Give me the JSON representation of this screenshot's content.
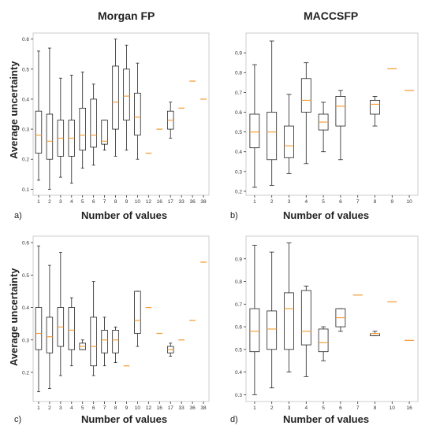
{
  "titles": {
    "morgan": "Morgan FP",
    "maccs": "MACCSFP"
  },
  "axis_labels": {
    "ylabel_a": "Average uncertainty",
    "ylabel_c": "Average uncertainty",
    "xlabel_a": "Number of values",
    "xlabel_b": "Number of values",
    "xlabel_c": "Number of values",
    "xlabel_d": "Number of values"
  },
  "panel_labels": {
    "a": "a)",
    "b": "b)",
    "c": "c)",
    "d": "d)"
  },
  "colors": {
    "box": "#222222",
    "median": "#f5a03c",
    "frame": "#cccccc",
    "tick": "#333333"
  },
  "chart_data": [
    {
      "id": "a",
      "type": "box",
      "ylim": [
        0.08,
        0.62
      ],
      "yticks": [
        0.1,
        0.2,
        0.3,
        0.4,
        0.5,
        0.6
      ],
      "categories": [
        "1",
        "2",
        "3",
        "4",
        "5",
        "6",
        "7",
        "8",
        "9",
        "10",
        "12",
        "16",
        "17",
        "33",
        "36",
        "38"
      ],
      "boxes": [
        [
          0.13,
          0.22,
          0.28,
          0.36,
          0.56
        ],
        [
          0.1,
          0.2,
          0.26,
          0.35,
          0.57
        ],
        [
          0.14,
          0.21,
          0.27,
          0.33,
          0.47
        ],
        [
          0.12,
          0.21,
          0.27,
          0.33,
          0.48
        ],
        [
          0.17,
          0.23,
          0.28,
          0.37,
          0.49
        ],
        [
          0.18,
          0.24,
          0.28,
          0.4,
          0.45
        ],
        [
          0.23,
          0.25,
          0.26,
          0.33,
          0.33
        ],
        [
          0.21,
          0.3,
          0.39,
          0.51,
          0.6
        ],
        [
          0.23,
          0.33,
          0.41,
          0.5,
          0.58
        ],
        [
          0.2,
          0.28,
          0.34,
          0.42,
          0.52
        ],
        [
          0.22,
          0.22,
          0.22,
          0.22,
          0.22
        ],
        [
          0.3,
          0.3,
          0.3,
          0.3,
          0.3
        ],
        [
          0.27,
          0.3,
          0.33,
          0.36,
          0.39
        ],
        [
          0.37,
          0.37,
          0.37,
          0.37,
          0.37
        ],
        [
          0.46,
          0.46,
          0.46,
          0.46,
          0.46
        ],
        [
          0.4,
          0.4,
          0.4,
          0.4,
          0.4
        ]
      ]
    },
    {
      "id": "b",
      "type": "box",
      "ylim": [
        0.18,
        1.0
      ],
      "yticks": [
        0.2,
        0.3,
        0.4,
        0.5,
        0.6,
        0.7,
        0.8,
        0.9
      ],
      "categories": [
        "1",
        "2",
        "3",
        "4",
        "5",
        "6",
        "7",
        "8",
        "9",
        "10"
      ],
      "boxes": [
        [
          0.22,
          0.42,
          0.5,
          0.59,
          0.84
        ],
        [
          0.23,
          0.36,
          0.5,
          0.6,
          0.96
        ],
        [
          0.29,
          0.37,
          0.43,
          0.53,
          0.69
        ],
        [
          0.34,
          0.6,
          0.66,
          0.77,
          0.85
        ],
        [
          0.4,
          0.51,
          0.55,
          0.59,
          0.65
        ],
        [
          0.36,
          0.53,
          0.63,
          0.68,
          0.71
        ],
        null,
        [
          0.53,
          0.59,
          0.64,
          0.66,
          0.68
        ],
        [
          0.82,
          0.82,
          0.82,
          0.82,
          0.82
        ],
        [
          0.71,
          0.71,
          0.71,
          0.71,
          0.71
        ]
      ]
    },
    {
      "id": "c",
      "type": "box",
      "ylim": [
        0.11,
        0.62
      ],
      "yticks": [
        0.2,
        0.3,
        0.4,
        0.5,
        0.6
      ],
      "categories": [
        "1",
        "2",
        "3",
        "4",
        "5",
        "6",
        "7",
        "8",
        "9",
        "10",
        "12",
        "16",
        "17",
        "33",
        "36",
        "38"
      ],
      "boxes": [
        [
          0.14,
          0.27,
          0.32,
          0.4,
          0.59
        ],
        [
          0.15,
          0.26,
          0.31,
          0.37,
          0.53
        ],
        [
          0.19,
          0.28,
          0.34,
          0.4,
          0.57
        ],
        [
          0.22,
          0.27,
          0.33,
          0.4,
          0.43
        ],
        [
          0.27,
          0.27,
          0.28,
          0.29,
          0.3
        ],
        [
          0.19,
          0.22,
          0.28,
          0.37,
          0.48
        ],
        [
          0.22,
          0.26,
          0.3,
          0.33,
          0.37
        ],
        [
          0.23,
          0.26,
          0.3,
          0.33,
          0.34
        ],
        [
          0.22,
          0.22,
          0.22,
          0.22,
          0.22
        ],
        [
          0.28,
          0.32,
          0.36,
          0.45,
          0.45
        ],
        [
          0.4,
          0.4,
          0.4,
          0.4,
          0.4
        ],
        [
          0.32,
          0.32,
          0.32,
          0.32,
          0.32
        ],
        [
          0.25,
          0.26,
          0.27,
          0.28,
          0.29
        ],
        [
          0.3,
          0.3,
          0.3,
          0.3,
          0.3
        ],
        [
          0.36,
          0.36,
          0.36,
          0.36,
          0.36
        ],
        [
          0.54,
          0.54,
          0.54,
          0.54,
          0.54
        ]
      ]
    },
    {
      "id": "d",
      "type": "box",
      "ylim": [
        0.27,
        1.0
      ],
      "yticks": [
        0.3,
        0.4,
        0.5,
        0.6,
        0.7,
        0.8,
        0.9
      ],
      "categories": [
        "1",
        "2",
        "3",
        "4",
        "5",
        "6",
        "7",
        "8",
        "10",
        "16"
      ],
      "boxes": [
        [
          0.3,
          0.49,
          0.58,
          0.68,
          0.96
        ],
        [
          0.33,
          0.5,
          0.59,
          0.67,
          0.93
        ],
        [
          0.4,
          0.5,
          0.68,
          0.75,
          0.97
        ],
        [
          0.38,
          0.52,
          0.58,
          0.76,
          0.78
        ],
        [
          0.45,
          0.49,
          0.53,
          0.59,
          0.6
        ],
        [
          0.58,
          0.6,
          0.64,
          0.68,
          0.68
        ],
        [
          0.74,
          0.74,
          0.74,
          0.74,
          0.74
        ],
        [
          0.56,
          0.56,
          0.57,
          0.57,
          0.58
        ],
        [
          0.71,
          0.71,
          0.71,
          0.71,
          0.71
        ],
        [
          0.54,
          0.54,
          0.54,
          0.54,
          0.54
        ]
      ]
    }
  ]
}
